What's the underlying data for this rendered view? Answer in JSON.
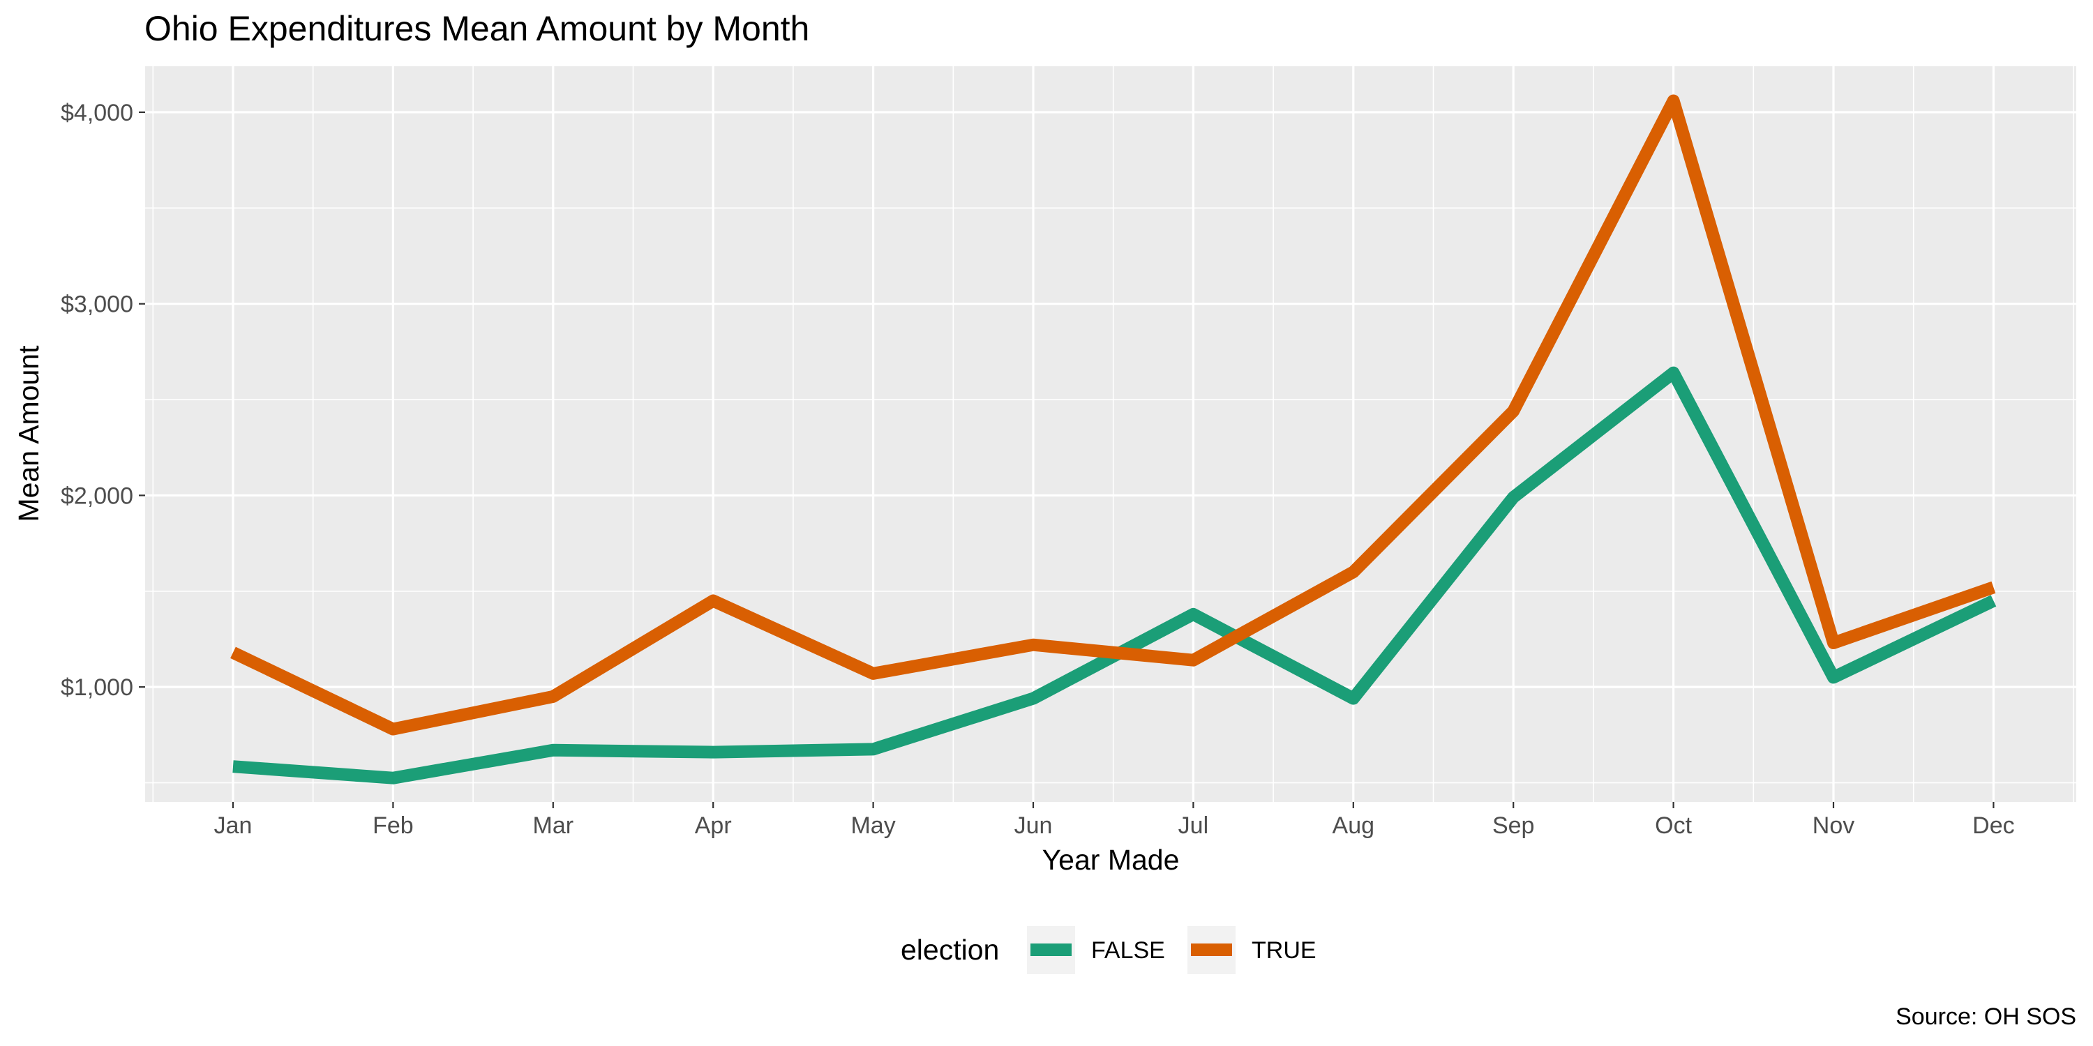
{
  "chart_data": {
    "type": "line",
    "title": "Ohio Expenditures Mean Amount by Month",
    "xlabel": "Year Made",
    "ylabel": "Mean Amount",
    "categories": [
      "Jan",
      "Feb",
      "Mar",
      "Apr",
      "May",
      "Jun",
      "Jul",
      "Aug",
      "Sep",
      "Oct",
      "Nov",
      "Dec"
    ],
    "y_ticks": [
      1000,
      2000,
      3000,
      4000
    ],
    "y_tick_labels": [
      "$1,000",
      "$2,000",
      "$3,000",
      "$4,000"
    ],
    "ylim": [
      400,
      4240
    ],
    "grid": true,
    "legend": {
      "title": "election",
      "placement": "bottom"
    },
    "series": [
      {
        "name": "FALSE",
        "color": "#1b9e77",
        "values": [
          585,
          525,
          670,
          660,
          675,
          940,
          1380,
          940,
          1990,
          2640,
          1050,
          1450
        ]
      },
      {
        "name": "TRUE",
        "color": "#d95f02",
        "values": [
          1180,
          780,
          950,
          1450,
          1070,
          1220,
          1140,
          1600,
          2440,
          4060,
          1230,
          1520
        ]
      }
    ],
    "caption": "Source: OH SOS"
  }
}
